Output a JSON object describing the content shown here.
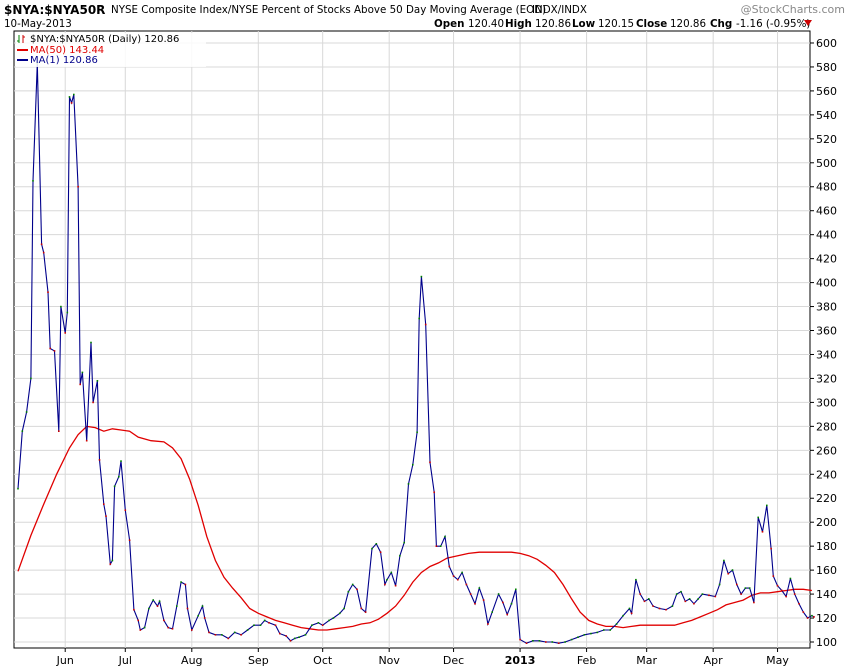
{
  "chart_data": {
    "type": "line",
    "symbol": "$NYA:$NYA50R",
    "title": "NYSE Composite Index/NYSE Percent of Stocks Above 50 Day Moving Average (EOD)",
    "exchange": "INDX/INDX",
    "date": "10-May-2013",
    "watermark": "@StockCharts.com",
    "ohlc": {
      "open_label": "Open",
      "open": "120.40",
      "high_label": "High",
      "high": "120.86",
      "low_label": "Low",
      "low": "120.15",
      "close_label": "Close",
      "close": "120.86",
      "chg_label": "Chg",
      "chg": "-1.16 (-0.95%)"
    },
    "legend": [
      {
        "text": "$NYA:$NYA50R (Daily) 120.86",
        "color": "#000000",
        "icon": "bars-icon"
      },
      {
        "text": "MA(50) 143.44",
        "color": "#e00000",
        "icon": "line-icon"
      },
      {
        "text": "MA(1) 120.86",
        "color": "#00008b",
        "icon": "line-icon"
      }
    ],
    "ylim": [
      95,
      610
    ],
    "y_ticks": [
      100,
      120,
      140,
      160,
      180,
      200,
      220,
      240,
      260,
      280,
      300,
      320,
      340,
      360,
      380,
      400,
      420,
      440,
      460,
      480,
      500,
      520,
      540,
      560,
      580,
      600
    ],
    "x_labels": [
      {
        "label": "Jun",
        "day": 22,
        "bold": false
      },
      {
        "label": "Jul",
        "day": 50,
        "bold": false
      },
      {
        "label": "Aug",
        "day": 81,
        "bold": false
      },
      {
        "label": "Sep",
        "day": 112,
        "bold": false
      },
      {
        "label": "Oct",
        "day": 142,
        "bold": false
      },
      {
        "label": "Nov",
        "day": 173,
        "bold": false
      },
      {
        "label": "Dec",
        "day": 203,
        "bold": false
      },
      {
        "label": "2013",
        "day": 234,
        "bold": true
      },
      {
        "label": "Feb",
        "day": 265,
        "bold": false
      },
      {
        "label": "Mar",
        "day": 293,
        "bold": false
      },
      {
        "label": "Apr",
        "day": 324,
        "bold": false
      },
      {
        "label": "May",
        "day": 354,
        "bold": false
      }
    ],
    "x_range": [
      0,
      364
    ],
    "colors": {
      "price": "#00008b",
      "ma50": "#e00000",
      "grid": "#d8d8d8",
      "up_tick": "#008000",
      "down_tick": "#cc0000"
    },
    "grid": true,
    "series": [
      {
        "name": "MA(1)",
        "points": [
          [
            0,
            228
          ],
          [
            2,
            276
          ],
          [
            4,
            292
          ],
          [
            6,
            320
          ],
          [
            7,
            485
          ],
          [
            9,
            583
          ],
          [
            11,
            432
          ],
          [
            12,
            425
          ],
          [
            14,
            392
          ],
          [
            15,
            345
          ],
          [
            17,
            343
          ],
          [
            19,
            276
          ],
          [
            20,
            380
          ],
          [
            22,
            358
          ],
          [
            23,
            375
          ],
          [
            24,
            555
          ],
          [
            25,
            550
          ],
          [
            26,
            557
          ],
          [
            28,
            480
          ],
          [
            29,
            315
          ],
          [
            30,
            325
          ],
          [
            32,
            268
          ],
          [
            34,
            350
          ],
          [
            35,
            300
          ],
          [
            37,
            318
          ],
          [
            38,
            252
          ],
          [
            40,
            215
          ],
          [
            41,
            205
          ],
          [
            43,
            165
          ],
          [
            44,
            168
          ],
          [
            45,
            230
          ],
          [
            47,
            238
          ],
          [
            48,
            251
          ],
          [
            50,
            210
          ],
          [
            52,
            185
          ],
          [
            54,
            127
          ],
          [
            56,
            118
          ],
          [
            57,
            110
          ],
          [
            59,
            112
          ],
          [
            61,
            128
          ],
          [
            63,
            135
          ],
          [
            65,
            130
          ],
          [
            66,
            134
          ],
          [
            68,
            118
          ],
          [
            70,
            112
          ],
          [
            72,
            111
          ],
          [
            74,
            130
          ],
          [
            76,
            150
          ],
          [
            78,
            148
          ],
          [
            79,
            128
          ],
          [
            81,
            110
          ],
          [
            84,
            122
          ],
          [
            86,
            130
          ],
          [
            87,
            120
          ],
          [
            89,
            108
          ],
          [
            92,
            106
          ],
          [
            95,
            106
          ],
          [
            98,
            103
          ],
          [
            101,
            108
          ],
          [
            104,
            106
          ],
          [
            107,
            110
          ],
          [
            110,
            114
          ],
          [
            113,
            114
          ],
          [
            115,
            118
          ],
          [
            117,
            116
          ],
          [
            120,
            114
          ],
          [
            122,
            107
          ],
          [
            125,
            105
          ],
          [
            127,
            101
          ],
          [
            129,
            103
          ],
          [
            131,
            104
          ],
          [
            134,
            106
          ],
          [
            137,
            114
          ],
          [
            140,
            116
          ],
          [
            142,
            114
          ],
          [
            145,
            118
          ],
          [
            147,
            120
          ],
          [
            150,
            124
          ],
          [
            152,
            128
          ],
          [
            154,
            142
          ],
          [
            156,
            148
          ],
          [
            158,
            144
          ],
          [
            160,
            128
          ],
          [
            162,
            125
          ],
          [
            165,
            178
          ],
          [
            167,
            182
          ],
          [
            169,
            175
          ],
          [
            171,
            148
          ],
          [
            172,
            152
          ],
          [
            174,
            158
          ],
          [
            176,
            147
          ],
          [
            178,
            172
          ],
          [
            180,
            183
          ],
          [
            182,
            232
          ],
          [
            184,
            248
          ],
          [
            186,
            275
          ],
          [
            187,
            370
          ],
          [
            188,
            405
          ],
          [
            190,
            365
          ],
          [
            192,
            250
          ],
          [
            194,
            225
          ],
          [
            195,
            180
          ],
          [
            197,
            180
          ],
          [
            199,
            188
          ],
          [
            201,
            163
          ],
          [
            203,
            155
          ],
          [
            205,
            152
          ],
          [
            207,
            158
          ],
          [
            209,
            148
          ],
          [
            211,
            140
          ],
          [
            213,
            132
          ],
          [
            215,
            145
          ],
          [
            217,
            135
          ],
          [
            219,
            115
          ],
          [
            221,
            125
          ],
          [
            224,
            140
          ],
          [
            226,
            133
          ],
          [
            228,
            123
          ],
          [
            230,
            132
          ],
          [
            232,
            144
          ],
          [
            234,
            102
          ],
          [
            237,
            99
          ],
          [
            240,
            101
          ],
          [
            243,
            101
          ],
          [
            246,
            100
          ],
          [
            249,
            100
          ],
          [
            252,
            99
          ],
          [
            255,
            100
          ],
          [
            258,
            102
          ],
          [
            261,
            104
          ],
          [
            264,
            106
          ],
          [
            267,
            107
          ],
          [
            270,
            108
          ],
          [
            273,
            110
          ],
          [
            276,
            110
          ],
          [
            279,
            115
          ],
          [
            282,
            122
          ],
          [
            285,
            128
          ],
          [
            286,
            124
          ],
          [
            288,
            152
          ],
          [
            290,
            140
          ],
          [
            292,
            134
          ],
          [
            294,
            136
          ],
          [
            296,
            130
          ],
          [
            299,
            128
          ],
          [
            302,
            127
          ],
          [
            305,
            130
          ],
          [
            307,
            140
          ],
          [
            309,
            142
          ],
          [
            311,
            134
          ],
          [
            313,
            136
          ],
          [
            315,
            132
          ],
          [
            317,
            136
          ],
          [
            319,
            140
          ],
          [
            322,
            139
          ],
          [
            325,
            138
          ],
          [
            327,
            148
          ],
          [
            329,
            168
          ],
          [
            331,
            157
          ],
          [
            333,
            160
          ],
          [
            335,
            148
          ],
          [
            337,
            140
          ],
          [
            339,
            145
          ],
          [
            341,
            145
          ],
          [
            343,
            133
          ],
          [
            345,
            204
          ],
          [
            347,
            192
          ],
          [
            349,
            214
          ],
          [
            351,
            178
          ],
          [
            352,
            155
          ],
          [
            354,
            147
          ],
          [
            356,
            143
          ],
          [
            358,
            138
          ],
          [
            360,
            153
          ],
          [
            362,
            140
          ],
          [
            364,
            132
          ],
          [
            366,
            125
          ],
          [
            368,
            120
          ],
          [
            370,
            122
          ],
          [
            371,
            121
          ]
        ]
      },
      {
        "name": "MA(50)",
        "points": [
          [
            0,
            159
          ],
          [
            6,
            189
          ],
          [
            12,
            215
          ],
          [
            18,
            240
          ],
          [
            24,
            262
          ],
          [
            28,
            273
          ],
          [
            32,
            280
          ],
          [
            36,
            279
          ],
          [
            40,
            276
          ],
          [
            44,
            278
          ],
          [
            48,
            277
          ],
          [
            52,
            276
          ],
          [
            56,
            271
          ],
          [
            62,
            268
          ],
          [
            68,
            267
          ],
          [
            72,
            262
          ],
          [
            76,
            253
          ],
          [
            80,
            236
          ],
          [
            84,
            214
          ],
          [
            88,
            188
          ],
          [
            92,
            168
          ],
          [
            96,
            154
          ],
          [
            100,
            145
          ],
          [
            104,
            137
          ],
          [
            108,
            128
          ],
          [
            112,
            124
          ],
          [
            116,
            121
          ],
          [
            120,
            118
          ],
          [
            124,
            116
          ],
          [
            128,
            114
          ],
          [
            132,
            112
          ],
          [
            136,
            111
          ],
          [
            140,
            110
          ],
          [
            144,
            110
          ],
          [
            148,
            111
          ],
          [
            152,
            112
          ],
          [
            156,
            113
          ],
          [
            160,
            115
          ],
          [
            164,
            116
          ],
          [
            168,
            119
          ],
          [
            172,
            124
          ],
          [
            176,
            130
          ],
          [
            180,
            139
          ],
          [
            184,
            150
          ],
          [
            188,
            158
          ],
          [
            192,
            163
          ],
          [
            196,
            166
          ],
          [
            200,
            170
          ],
          [
            205,
            172
          ],
          [
            210,
            174
          ],
          [
            215,
            175
          ],
          [
            220,
            175
          ],
          [
            225,
            175
          ],
          [
            230,
            175
          ],
          [
            234,
            174
          ],
          [
            238,
            172
          ],
          [
            242,
            169
          ],
          [
            246,
            164
          ],
          [
            250,
            158
          ],
          [
            254,
            148
          ],
          [
            258,
            136
          ],
          [
            262,
            125
          ],
          [
            266,
            118
          ],
          [
            270,
            115
          ],
          [
            274,
            113
          ],
          [
            278,
            113
          ],
          [
            282,
            112
          ],
          [
            286,
            113
          ],
          [
            290,
            114
          ],
          [
            294,
            114
          ],
          [
            298,
            114
          ],
          [
            302,
            114
          ],
          [
            306,
            114
          ],
          [
            310,
            116
          ],
          [
            314,
            118
          ],
          [
            318,
            121
          ],
          [
            322,
            124
          ],
          [
            326,
            127
          ],
          [
            330,
            131
          ],
          [
            334,
            133
          ],
          [
            338,
            135
          ],
          [
            342,
            139
          ],
          [
            346,
            141
          ],
          [
            350,
            141
          ],
          [
            354,
            142
          ],
          [
            358,
            143
          ],
          [
            362,
            144
          ],
          [
            366,
            144
          ],
          [
            370,
            143
          ]
        ]
      }
    ]
  }
}
